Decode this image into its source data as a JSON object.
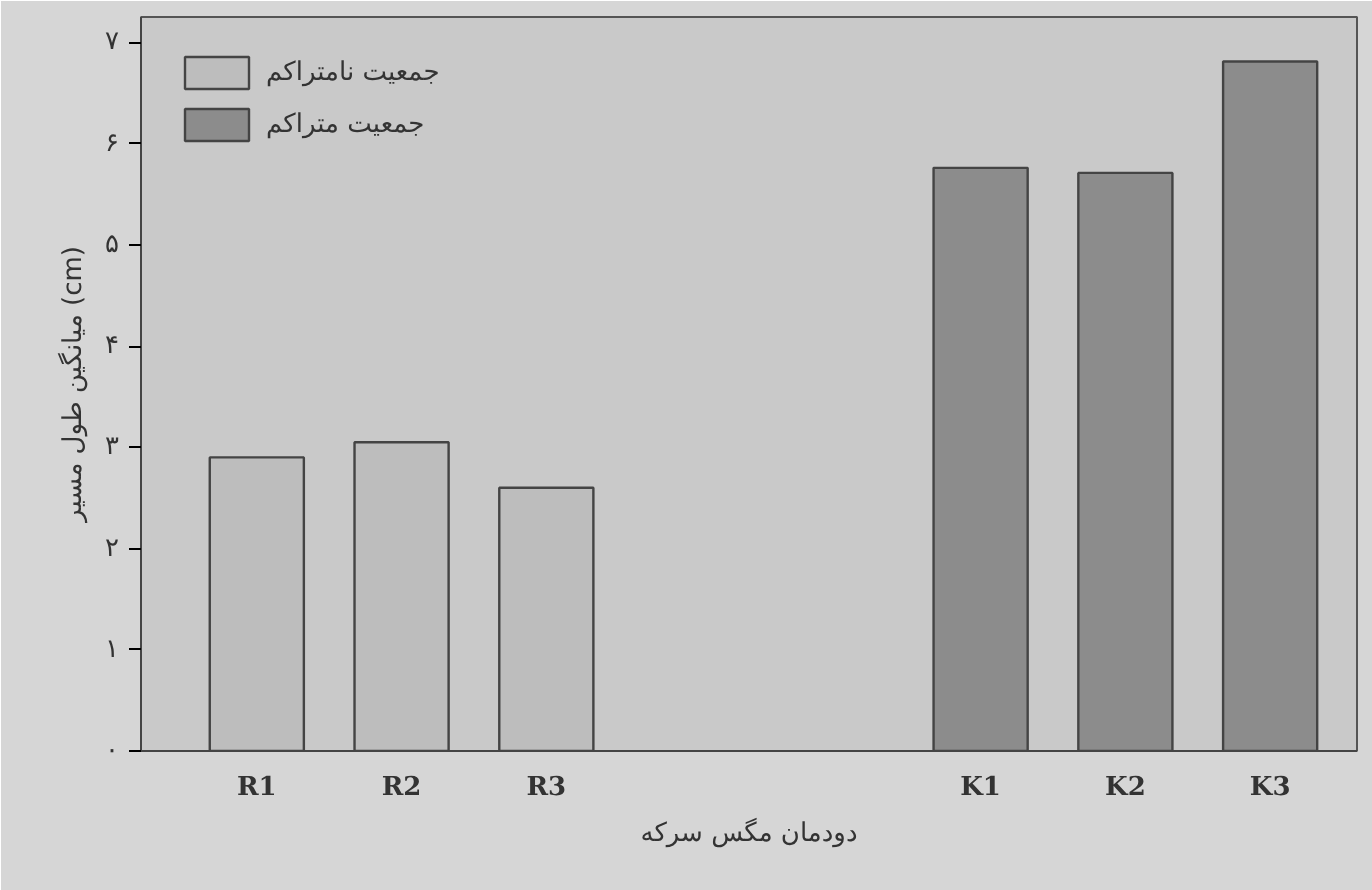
{
  "chart_data": {
    "type": "bar",
    "xlabel": "دودمان مگس سرکه",
    "ylabel": "میانگین طول مسیر (cm)",
    "categories": [
      "R1",
      "R2",
      "R3",
      null,
      null,
      "K1",
      "K2",
      "K3"
    ],
    "series": [
      {
        "name": "جمعیت نامتراکم",
        "color": "#bdbdbd",
        "values": [
          2.9,
          3.05,
          2.6,
          null,
          null,
          null,
          null,
          null
        ]
      },
      {
        "name": "جمعیت متراکم",
        "color": "#8c8c8c",
        "values": [
          null,
          null,
          null,
          null,
          null,
          5.76,
          5.71,
          6.81
        ]
      }
    ],
    "ylim": [
      0,
      7.25
    ],
    "yticks": [
      {
        "value": 0,
        "label": "۰"
      },
      {
        "value": 1,
        "label": "۱"
      },
      {
        "value": 2,
        "label": "۲"
      },
      {
        "value": 3,
        "label": "۳"
      },
      {
        "value": 4,
        "label": "۴"
      },
      {
        "value": 5,
        "label": "۵"
      },
      {
        "value": 6,
        "label": "۶"
      },
      {
        "value": 7,
        "label": "۷"
      }
    ],
    "grid": false,
    "legend": "top left"
  }
}
